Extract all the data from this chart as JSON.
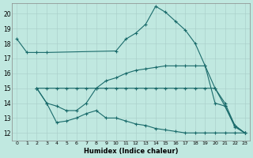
{
  "xlabel": "Humidex (Indice chaleur)",
  "xlim": [
    -0.5,
    23.5
  ],
  "ylim": [
    11.5,
    20.7
  ],
  "yticks": [
    12,
    13,
    14,
    15,
    16,
    17,
    18,
    19,
    20
  ],
  "xtick_labels": [
    "0",
    "1",
    "2",
    "3",
    "4",
    "5",
    "6",
    "7",
    "8",
    "9",
    "10",
    "11",
    "12",
    "13",
    "14",
    "15",
    "16",
    "17",
    "18",
    "19",
    "20",
    "21",
    "22",
    "23"
  ],
  "bg_color": "#c0e8e0",
  "line_color": "#1a6b6b",
  "lines": [
    {
      "x": [
        0,
        1,
        2,
        3,
        10,
        11,
        12,
        13,
        14,
        15,
        16,
        17,
        18,
        19,
        20,
        21,
        22,
        23
      ],
      "y": [
        18.3,
        17.4,
        17.4,
        17.4,
        17.5,
        18.3,
        18.7,
        19.3,
        20.5,
        20.1,
        19.5,
        18.9,
        18.0,
        16.5,
        15.0,
        13.8,
        12.4,
        12.0
      ]
    },
    {
      "x": [
        2,
        3,
        4,
        5,
        6,
        7,
        8,
        9,
        10,
        11,
        12,
        13,
        14,
        15,
        16,
        17,
        18,
        19,
        20,
        21,
        22,
        23
      ],
      "y": [
        15.0,
        15.0,
        15.0,
        15.0,
        15.0,
        15.0,
        15.0,
        15.0,
        15.0,
        15.0,
        15.0,
        15.0,
        15.0,
        15.0,
        15.0,
        15.0,
        15.0,
        15.0,
        15.0,
        14.0,
        12.5,
        12.0
      ]
    },
    {
      "x": [
        2,
        3,
        4,
        5,
        6,
        7,
        8,
        9,
        10,
        11,
        12,
        13,
        14,
        15,
        16,
        17,
        18,
        19,
        20,
        21,
        22,
        23
      ],
      "y": [
        15.0,
        14.0,
        13.8,
        13.5,
        13.5,
        14.0,
        15.0,
        15.5,
        15.7,
        16.0,
        16.2,
        16.3,
        16.4,
        16.5,
        16.5,
        16.5,
        16.5,
        16.5,
        14.0,
        13.8,
        12.5,
        12.0
      ]
    },
    {
      "x": [
        2,
        3,
        4,
        5,
        6,
        7,
        8,
        9,
        10,
        11,
        12,
        13,
        14,
        15,
        16,
        17,
        18,
        19,
        20,
        21,
        22,
        23
      ],
      "y": [
        15.0,
        14.0,
        12.7,
        12.8,
        13.0,
        13.3,
        13.5,
        13.0,
        13.0,
        12.8,
        12.6,
        12.5,
        12.3,
        12.2,
        12.1,
        12.0,
        12.0,
        12.0,
        12.0,
        12.0,
        12.0,
        12.0
      ]
    }
  ]
}
